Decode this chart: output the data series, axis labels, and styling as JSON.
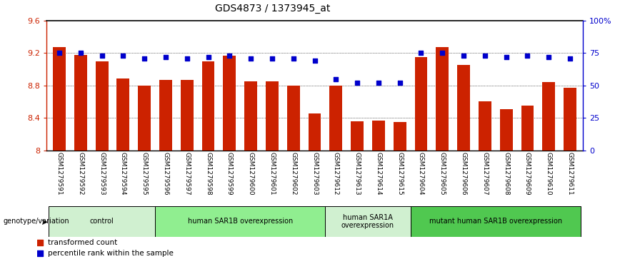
{
  "title": "GDS4873 / 1373945_at",
  "samples": [
    "GSM1279591",
    "GSM1279592",
    "GSM1279593",
    "GSM1279594",
    "GSM1279595",
    "GSM1279596",
    "GSM1279597",
    "GSM1279598",
    "GSM1279599",
    "GSM1279600",
    "GSM1279601",
    "GSM1279602",
    "GSM1279603",
    "GSM1279612",
    "GSM1279613",
    "GSM1279614",
    "GSM1279615",
    "GSM1279604",
    "GSM1279605",
    "GSM1279606",
    "GSM1279607",
    "GSM1279608",
    "GSM1279609",
    "GSM1279610",
    "GSM1279611"
  ],
  "bar_values": [
    9.27,
    9.18,
    9.1,
    8.89,
    8.8,
    8.87,
    8.87,
    9.1,
    9.17,
    8.85,
    8.85,
    8.8,
    8.45,
    8.8,
    8.36,
    8.37,
    8.35,
    9.15,
    9.27,
    9.05,
    8.6,
    8.51,
    8.55,
    8.84,
    8.77
  ],
  "dot_percentiles": [
    75,
    75,
    73,
    73,
    71,
    72,
    71,
    72,
    73,
    71,
    71,
    71,
    69,
    55,
    52,
    52,
    52,
    75,
    75,
    73,
    73,
    72,
    73,
    72,
    71
  ],
  "groups": [
    {
      "label": "control",
      "start": 0,
      "end": 5,
      "color": "#d0f0d0"
    },
    {
      "label": "human SAR1B overexpression",
      "start": 5,
      "end": 13,
      "color": "#90ee90"
    },
    {
      "label": "human SAR1A\noverexpression",
      "start": 13,
      "end": 17,
      "color": "#d0f0d0"
    },
    {
      "label": "mutant human SAR1B overexpression",
      "start": 17,
      "end": 25,
      "color": "#50c850"
    }
  ],
  "ylim_left": [
    8.0,
    9.6
  ],
  "ylim_right": [
    0,
    100
  ],
  "yticks_left": [
    8.0,
    8.4,
    8.8,
    9.2,
    9.6
  ],
  "ytick_labels_left": [
    "8",
    "8.4",
    "8.8",
    "9.2",
    "9.6"
  ],
  "yticks_right": [
    0,
    25,
    50,
    75,
    100
  ],
  "ytick_labels_right": [
    "0",
    "25",
    "50",
    "75",
    "100%"
  ],
  "bar_color": "#cc2200",
  "dot_color": "#0000cc",
  "genotype_label": "genotype/variation",
  "legend_items": [
    {
      "label": "transformed count",
      "color": "#cc2200"
    },
    {
      "label": "percentile rank within the sample",
      "color": "#0000cc"
    }
  ]
}
